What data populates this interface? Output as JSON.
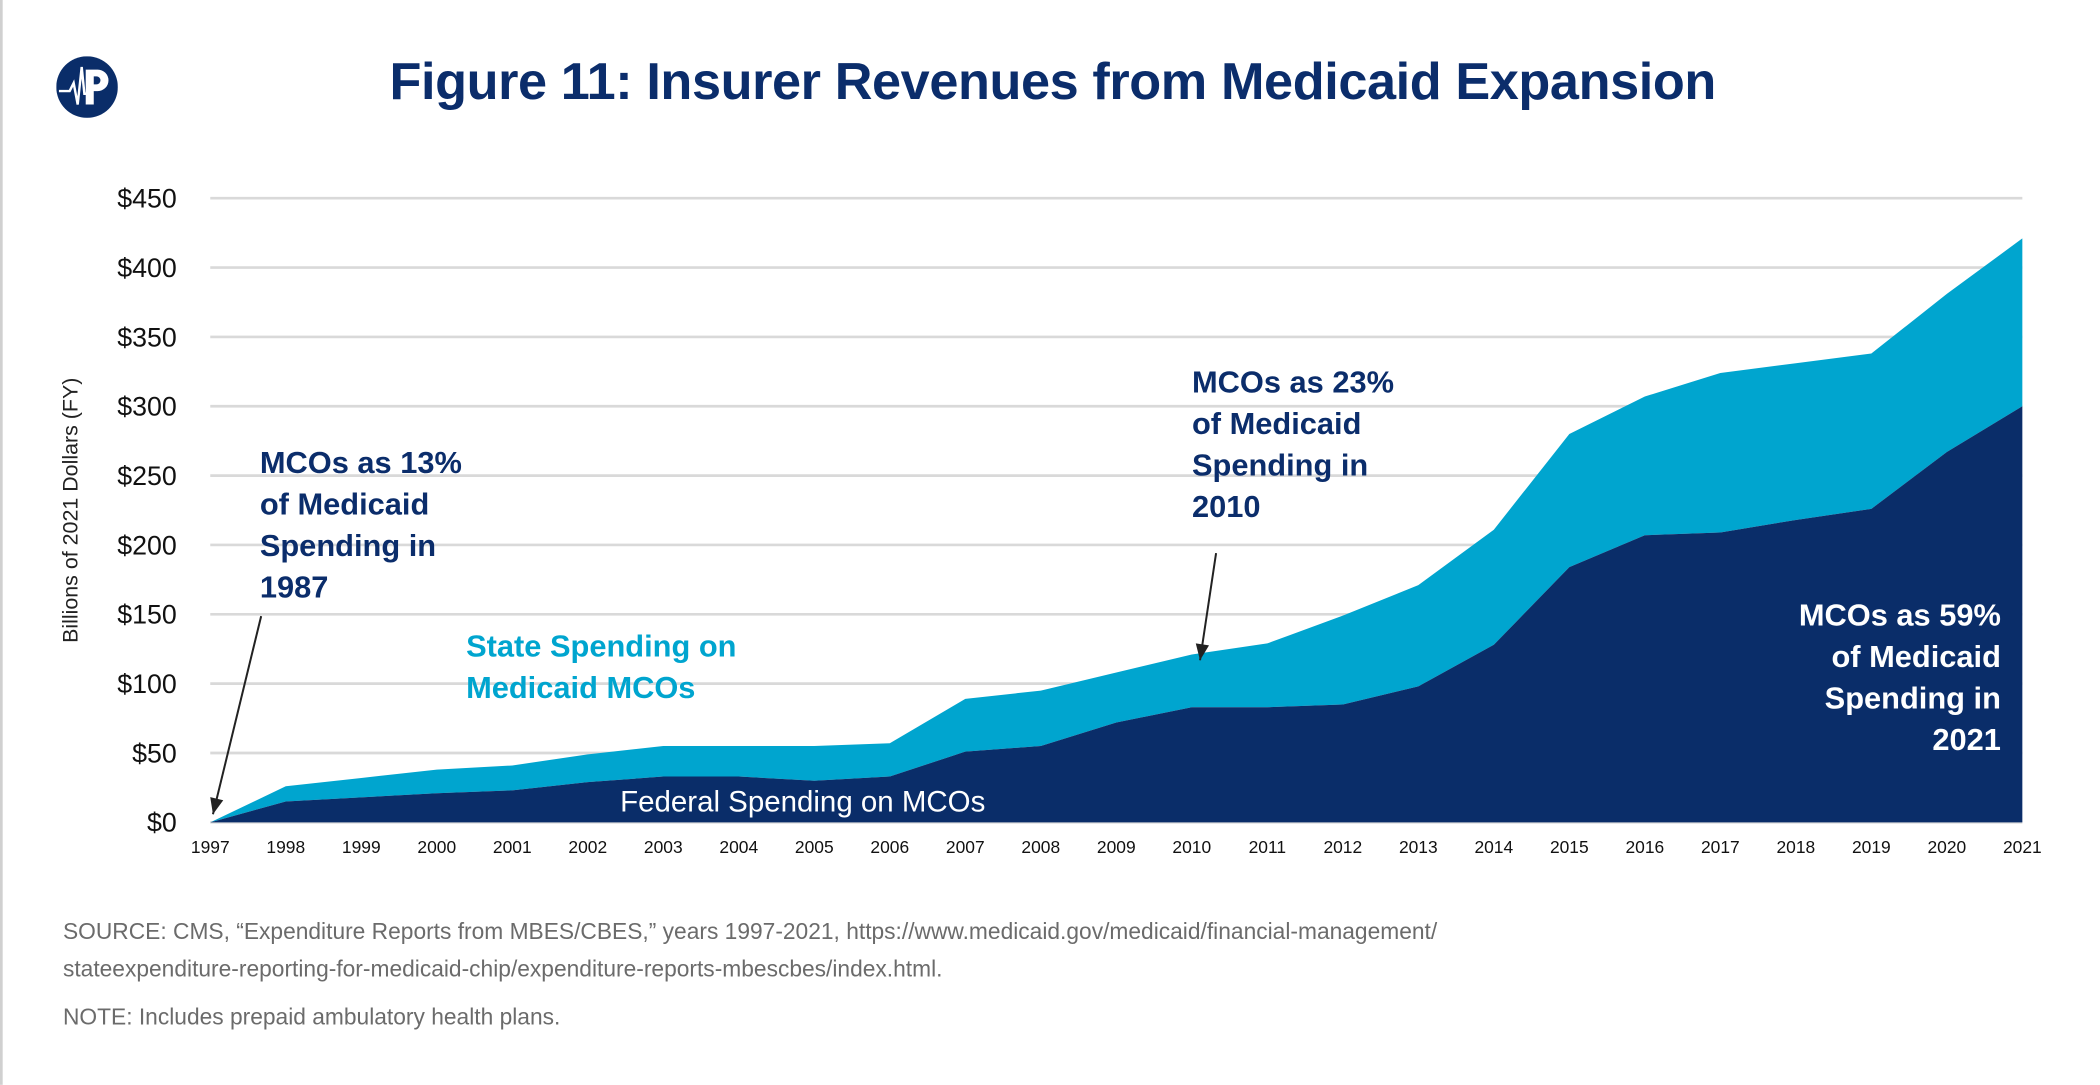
{
  "title": "Figure 11: Insurer Revenues from Medicaid Expansion",
  "logo": {
    "letter": "P",
    "icon": "heartbeat-p-logo"
  },
  "colors": {
    "federal": "#0a2d69",
    "state": "#00a5cf",
    "title": "#0b2d6b",
    "grid": "#d9d9d9"
  },
  "chart_data": {
    "type": "area",
    "stacked": true,
    "title": "Figure 11: Insurer Revenues from Medicaid Expansion",
    "xlabel": "",
    "ylabel": "Billions of 2021 Dollars (FY)",
    "ylim": [
      0,
      450
    ],
    "grid": true,
    "x": [
      1997,
      1998,
      1999,
      2000,
      2001,
      2002,
      2003,
      2004,
      2005,
      2006,
      2007,
      2008,
      2009,
      2010,
      2011,
      2012,
      2013,
      2014,
      2015,
      2016,
      2017,
      2018,
      2019,
      2020,
      2021
    ],
    "yticks": [
      "$0",
      "$50",
      "$100",
      "$150",
      "$200",
      "$250",
      "$300",
      "$350",
      "$400",
      "$450"
    ],
    "ytick_values": [
      0,
      50,
      100,
      150,
      200,
      250,
      300,
      350,
      400,
      450
    ],
    "series": [
      {
        "name": "Federal Spending on MCOs",
        "values": [
          0,
          15,
          18,
          21,
          23,
          29,
          33,
          33,
          30,
          33,
          51,
          55,
          72,
          83,
          83,
          85,
          98,
          128,
          184,
          207,
          209,
          218,
          226,
          267,
          300
        ]
      },
      {
        "name": "State Spending on Medicaid MCOs",
        "values": [
          0,
          11,
          14,
          17,
          18,
          20,
          22,
          22,
          25,
          24,
          38,
          40,
          36,
          38,
          46,
          64,
          73,
          83,
          96,
          100,
          115,
          113,
          112,
          114,
          121
        ]
      }
    ],
    "annotations": [
      {
        "lines": [
          "MCOs as 13%",
          "of Medicaid",
          "Spending in",
          "1987"
        ]
      },
      {
        "lines": [
          "MCOs as 23%",
          "of Medicaid",
          "Spending in",
          "2010"
        ]
      },
      {
        "lines": [
          "MCOs as 59%",
          "of Medicaid",
          "Spending in",
          "2021"
        ]
      }
    ],
    "series_labels": {
      "state": [
        "State Spending on",
        "Medicaid MCOs"
      ],
      "federal": "Federal Spending on MCOs"
    }
  },
  "source": {
    "line1": "SOURCE: CMS, “Expenditure Reports from MBES/CBES,” years 1997-2021, https://www.medicaid.gov/medicaid/financial-management/",
    "line2": "stateexpenditure-reporting-for-medicaid-chip/expenditure-reports-mbescbes/index.html.",
    "note": "NOTE: Includes prepaid ambulatory health plans."
  }
}
